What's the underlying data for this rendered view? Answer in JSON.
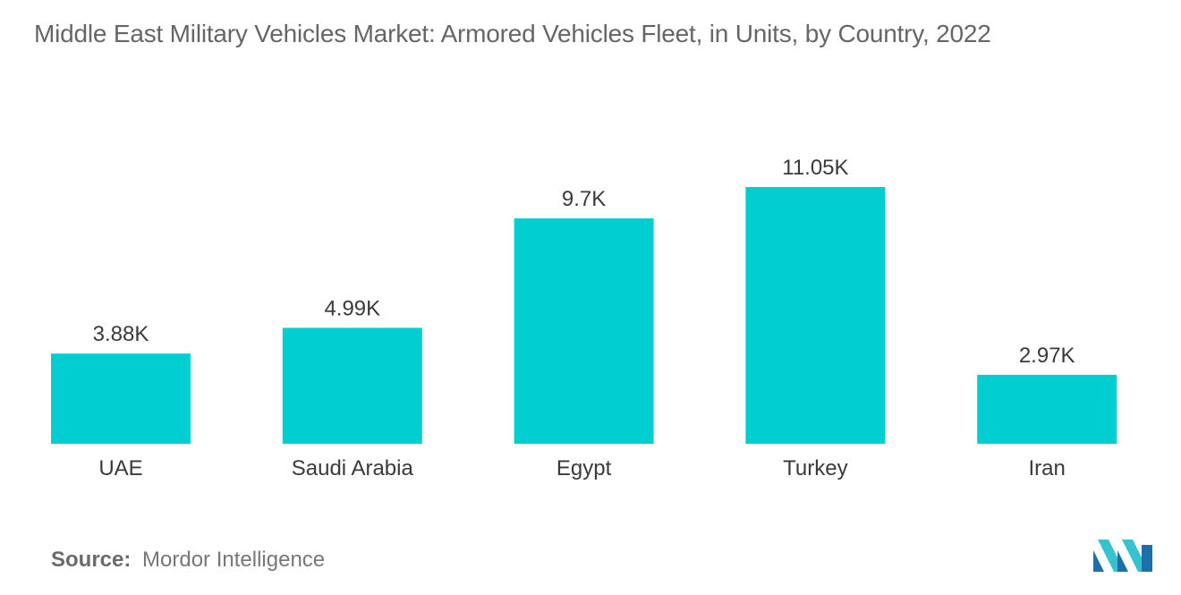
{
  "chart_data": {
    "type": "bar",
    "title": "Middle East Military Vehicles Market: Armored Vehicles Fleet, in Units, by Country, 2022",
    "categories": [
      "UAE",
      "Saudi Arabia",
      "Egypt",
      "Turkey",
      "Iran"
    ],
    "values": [
      3.88,
      4.99,
      9.7,
      11.05,
      2.97
    ],
    "value_labels": [
      "3.88K",
      "4.99K",
      "9.7K",
      "11.05K",
      "2.97K"
    ],
    "unit": "K",
    "xlabel": "",
    "ylabel": "",
    "ylim": [
      0,
      11.05
    ],
    "grid": false,
    "legend": "none",
    "bar_color": "#00CED1"
  },
  "source": {
    "label": "Source:",
    "value": "Mordor Intelligence"
  },
  "logo": {
    "icon": "mordor-intelligence-logo-icon",
    "colors": [
      "#1c6fa8",
      "#36c2cf"
    ]
  }
}
